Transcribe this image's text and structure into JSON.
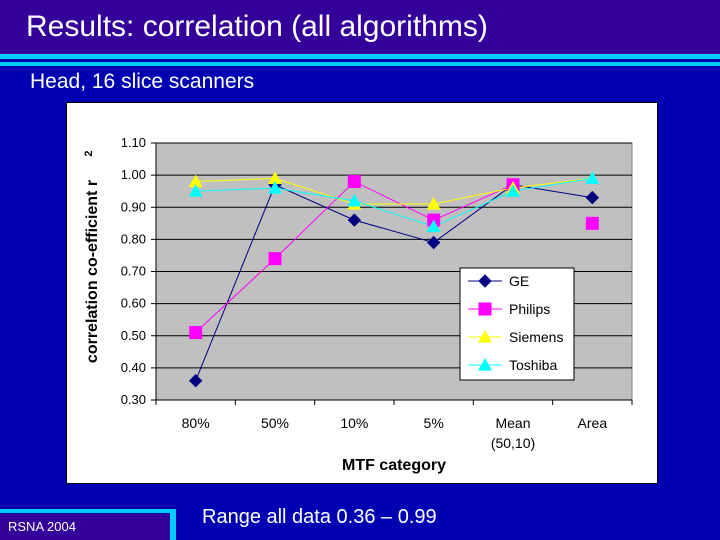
{
  "slide": {
    "title": "Results: correlation (all algorithms)",
    "subtitle": "Head, 16 slice scanners",
    "footer": "RSNA 2004",
    "range_note": "Range all data 0.36 – 0.99",
    "colors": {
      "background": "#0000b3",
      "title_bar": "#330099",
      "accent": "#00ccff"
    }
  },
  "chart_data": {
    "type": "line",
    "title": "",
    "xlabel": "MTF category",
    "ylabel": "correlation co-efficient  r",
    "ylabel_superscript": "2",
    "categories": [
      {
        "line1": "80%",
        "line2": ""
      },
      {
        "line1": "50%",
        "line2": ""
      },
      {
        "line1": "10%",
        "line2": ""
      },
      {
        "line1": "5%",
        "line2": ""
      },
      {
        "line1": "Mean",
        "line2": "(50,10)"
      },
      {
        "line1": "Area",
        "line2": ""
      }
    ],
    "ylim": [
      0.3,
      1.1
    ],
    "yticks": [
      "0.30",
      "0.40",
      "0.50",
      "0.60",
      "0.70",
      "0.80",
      "0.90",
      "1.00",
      "1.10"
    ],
    "grid": true,
    "plot_background": "#c0c0c0",
    "legend_position": "right",
    "series": [
      {
        "name": "GE",
        "values": [
          0.36,
          0.97,
          0.86,
          0.79,
          0.97,
          0.93
        ],
        "color": "#000080",
        "marker": "diamond",
        "connected_points": 6
      },
      {
        "name": "Philips",
        "values": [
          0.51,
          0.74,
          0.98,
          0.86,
          0.97,
          0.85
        ],
        "color": "#ff00ff",
        "marker": "square",
        "connected_points": 5
      },
      {
        "name": "Siemens",
        "values": [
          0.98,
          0.99,
          0.91,
          0.91,
          0.96,
          0.99
        ],
        "color": "#ffff00",
        "marker": "triangle",
        "connected_points": 6
      },
      {
        "name": "Toshiba",
        "values": [
          0.95,
          0.96,
          0.92,
          0.84,
          0.95,
          0.99
        ],
        "color": "#00ffff",
        "marker": "triangle",
        "connected_points": 6
      }
    ]
  }
}
